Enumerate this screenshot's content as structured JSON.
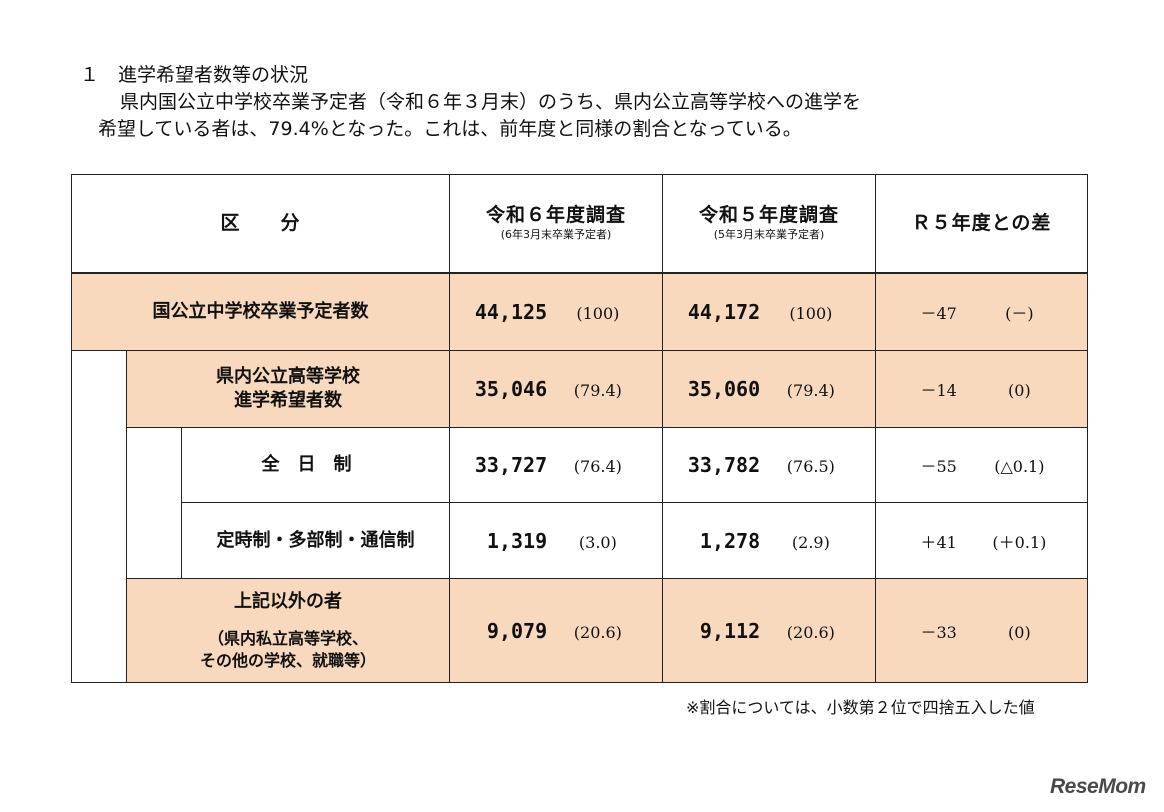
{
  "section": {
    "heading": "１　進学希望者数等の状況",
    "intro_line1": "県内国公立中学校卒業予定者（令和６年３月末）のうち、県内公立高等学校への進学を",
    "intro_line2": "希望している者は、79.4%となった。これは、前年度と同様の割合となっている。"
  },
  "table": {
    "headers": {
      "category": "区　　分",
      "r6": "令和６年度調査",
      "r6_sub": "(6年3月末卒業予定者)",
      "r5": "令和５年度調査",
      "r5_sub": "(5年3月末卒業予定者)",
      "diff": "Ｒ５年度との差"
    },
    "rows": [
      {
        "label": "国公立中学校卒業予定者数",
        "r6": "44,125",
        "r6_pct": "(100)",
        "r5": "44,172",
        "r5_pct": "(100)",
        "diff": "－47",
        "diff_pct": "(－)"
      },
      {
        "label_line1": "県内公立高等学校",
        "label_line2": "進学希望者数",
        "r6": "35,046",
        "r6_pct": "(79.4)",
        "r5": "35,060",
        "r5_pct": "(79.4)",
        "diff": "－14",
        "diff_pct": "(0)"
      },
      {
        "label": "全日制",
        "r6": "33,727",
        "r6_pct": "(76.4)",
        "r5": "33,782",
        "r5_pct": "(76.5)",
        "diff": "－55",
        "diff_pct": "(△0.1)"
      },
      {
        "label": "定時制・多部制・通信制",
        "r6": "1,319",
        "r6_pct": "(3.0)",
        "r5": "1,278",
        "r5_pct": "(2.9)",
        "diff": "＋41",
        "diff_pct": "(＋0.1)"
      },
      {
        "label": "上記以外の者",
        "label_sub1": "（県内私立高等学校、",
        "label_sub2": "その他の学校、就職等）",
        "r6": "9,079",
        "r6_pct": "(20.6)",
        "r5": "9,112",
        "r5_pct": "(20.6)",
        "diff": "－33",
        "diff_pct": "(0)"
      }
    ]
  },
  "note": "※割合については、小数第２位で四捨五入した値",
  "watermark": "ReseMom",
  "colors": {
    "highlight": "#f9d9bd",
    "border": "#222222"
  }
}
